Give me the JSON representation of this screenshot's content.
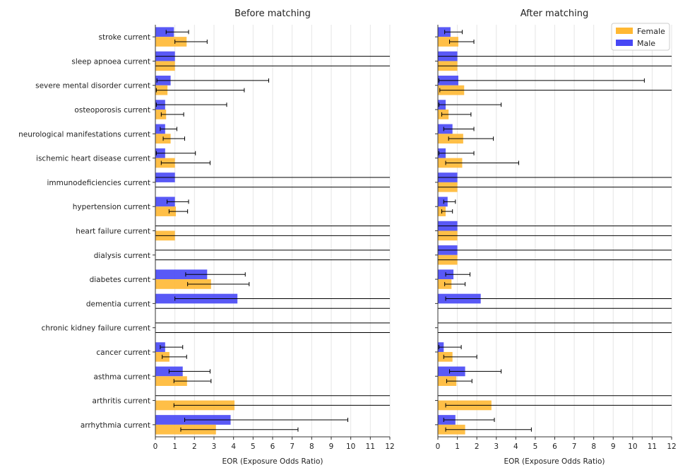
{
  "figure": {
    "legend": {
      "location": "top-right",
      "items": [
        "Female",
        "Male"
      ]
    },
    "colors": {
      "Female": "#FFB833",
      "Male": "#4747F5",
      "errorbar": "#000000",
      "grid": "#e6e6e6"
    }
  },
  "chart_data": [
    {
      "type": "bar",
      "orientation": "horizontal",
      "title": "Before matching",
      "xlabel": "EOR (Exposure Odds Ratio)",
      "ylabel": "",
      "xlim": [
        0,
        12
      ],
      "xticks": [
        0,
        1,
        2,
        3,
        4,
        5,
        6,
        7,
        8,
        9,
        10,
        11,
        12
      ],
      "grid": "vertical",
      "categories": [
        "stroke current",
        "sleep apnoea current",
        "severe mental disorder current",
        "osteoporosis current",
        "neurological manifestations current",
        "ischemic heart disease current",
        "immunodeficiencies current",
        "hypertension current",
        "heart failure current",
        "dialysis current",
        "diabetes current",
        "dementia current",
        "chronic kidney failure current",
        "cancer current",
        "asthma current",
        "arthritis current",
        "arrhythmia current"
      ],
      "series": [
        {
          "name": "Male",
          "values": [
            0.95,
            1.0,
            0.78,
            0.5,
            0.5,
            0.5,
            1.0,
            1.0,
            0,
            0,
            2.65,
            4.2,
            0,
            0.5,
            1.4,
            0,
            3.85
          ],
          "ci_low": [
            0.55,
            0,
            0.08,
            0.05,
            0.25,
            0.05,
            0,
            0.6,
            0,
            0,
            1.55,
            1.0,
            0,
            0.25,
            0.7,
            0,
            1.5
          ],
          "ci_high": [
            1.7,
            12,
            5.8,
            3.65,
            1.1,
            2.05,
            12,
            1.7,
            12,
            12,
            4.6,
            12,
            12,
            1.4,
            2.8,
            12,
            9.85
          ]
        },
        {
          "name": "Female",
          "values": [
            1.6,
            1.0,
            0.62,
            0.55,
            0.78,
            1.0,
            0,
            1.05,
            1.0,
            0,
            2.85,
            0,
            0,
            0.72,
            1.62,
            4.05,
            3.1
          ],
          "ci_low": [
            1.0,
            0,
            0.05,
            0.3,
            0.4,
            0.3,
            0,
            0.7,
            0,
            0,
            1.65,
            0,
            0,
            0.35,
            0.95,
            0.95,
            1.3
          ],
          "ci_high": [
            2.65,
            12,
            4.55,
            1.45,
            1.5,
            2.8,
            12,
            1.65,
            12,
            12,
            4.8,
            12,
            12,
            1.6,
            2.85,
            12,
            7.3
          ]
        }
      ]
    },
    {
      "type": "bar",
      "orientation": "horizontal",
      "title": "After matching",
      "xlabel": "EOR (Exposure Odds Ratio)",
      "ylabel": "",
      "xlim": [
        0,
        12
      ],
      "xticks": [
        0,
        1,
        2,
        3,
        4,
        5,
        6,
        7,
        8,
        9,
        10,
        11,
        12
      ],
      "grid": "vertical",
      "categories": [
        "stroke current",
        "sleep apnoea current",
        "severe mental disorder current",
        "osteoporosis current",
        "neurological manifestations current",
        "ischemic heart disease current",
        "immunodeficiencies current",
        "hypertension current",
        "heart failure current",
        "dialysis current",
        "diabetes current",
        "dementia current",
        "chronic kidney failure current",
        "cancer current",
        "asthma current",
        "arthritis current",
        "arrhythmia current"
      ],
      "series": [
        {
          "name": "Male",
          "values": [
            0.65,
            1.0,
            1.05,
            0.4,
            0.75,
            0.4,
            1.0,
            0.5,
            1.0,
            1.0,
            0.8,
            2.2,
            0,
            0.3,
            1.4,
            0,
            0.9
          ],
          "ci_low": [
            0.35,
            0,
            0.05,
            0.05,
            0.3,
            0.05,
            0,
            0.3,
            0,
            0,
            0.4,
            0.4,
            0,
            0.05,
            0.6,
            0,
            0.3
          ],
          "ci_high": [
            1.25,
            12,
            10.6,
            3.25,
            1.85,
            1.85,
            12,
            0.9,
            12,
            12,
            1.65,
            12,
            12,
            1.2,
            3.25,
            12,
            2.9
          ]
        },
        {
          "name": "Female",
          "values": [
            1.05,
            1.0,
            1.35,
            0.55,
            1.3,
            1.25,
            1.0,
            0.4,
            1.0,
            1.0,
            0.7,
            0,
            0,
            0.75,
            0.95,
            2.75,
            1.4
          ],
          "ci_low": [
            0.6,
            0,
            0.1,
            0.2,
            0.55,
            0.4,
            0,
            0.2,
            0,
            0,
            0.35,
            0,
            0,
            0.3,
            0.45,
            0.4,
            0.4
          ],
          "ci_high": [
            1.85,
            12,
            12,
            1.7,
            2.85,
            4.15,
            12,
            0.75,
            12,
            12,
            1.4,
            12,
            12,
            2.0,
            1.75,
            12,
            4.8
          ]
        }
      ]
    }
  ]
}
